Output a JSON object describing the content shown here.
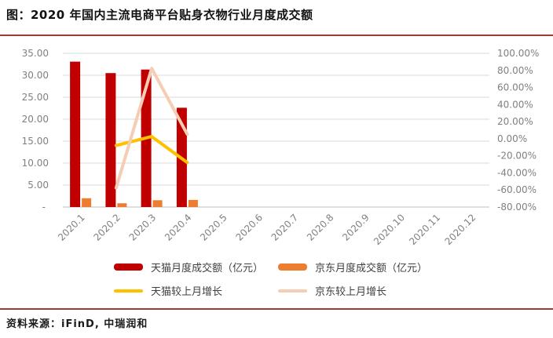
{
  "page": {
    "title": "图：2020 年国内主流电商平台贴身衣物行业月度成交额",
    "source": "资料来源：iFinD, 中瑞润和"
  },
  "colors": {
    "accent_rule": "#9e3b32",
    "gridline": "#d9d9d9",
    "axis_line": "#bfbfbf",
    "tick_text": "#808080",
    "legend_text": "#3f3f3f"
  },
  "chart_data": {
    "type": "bar",
    "subtype": "combo-bar-line-dual-axis",
    "title": "2020 年国内主流电商平台贴身衣物行业月度成交额",
    "categories": [
      "2020.1",
      "2020.2",
      "2020.3",
      "2020.4",
      "2020.5",
      "2020.6",
      "2020.7",
      "2020.8",
      "2020.9",
      "2020.10",
      "2020.11",
      "2020.12"
    ],
    "series": [
      {
        "name": "天猫月度成交额（亿元）",
        "type": "bar",
        "axis": "left",
        "color": "#c00000",
        "values": [
          33.1,
          30.5,
          31.3,
          22.6,
          null,
          null,
          null,
          null,
          null,
          null,
          null,
          null
        ]
      },
      {
        "name": "京东月度成交额（亿元）",
        "type": "bar",
        "axis": "left",
        "color": "#ed7d31",
        "values": [
          2.0,
          0.85,
          1.55,
          1.63,
          null,
          null,
          null,
          null,
          null,
          null,
          null,
          null
        ]
      },
      {
        "name": "天猫较上月增长",
        "type": "line",
        "axis": "right",
        "color": "#ffc000",
        "values": [
          null,
          -7.9,
          2.6,
          -27.8,
          null,
          null,
          null,
          null,
          null,
          null,
          null,
          null
        ]
      },
      {
        "name": "京东较上月增长",
        "type": "line",
        "axis": "right",
        "color": "#f5cdb4",
        "values": [
          null,
          -57.5,
          82.4,
          5.2,
          null,
          null,
          null,
          null,
          null,
          null,
          null,
          null
        ]
      }
    ],
    "left_axis": {
      "min": 0,
      "max": 35,
      "tick_labels": [
        "35.00",
        "30.00",
        "25.00",
        "20.00",
        "15.00",
        "10.00",
        "5.00",
        "-"
      ]
    },
    "right_axis": {
      "min": -80,
      "max": 100,
      "tick_labels": [
        "100.00%",
        "80.00%",
        "60.00%",
        "40.00%",
        "20.00%",
        "0.00%",
        "-20.00%",
        "-40.00%",
        "-60.00%",
        "-80.00%"
      ]
    },
    "grid": true,
    "legend_position": "bottom"
  }
}
